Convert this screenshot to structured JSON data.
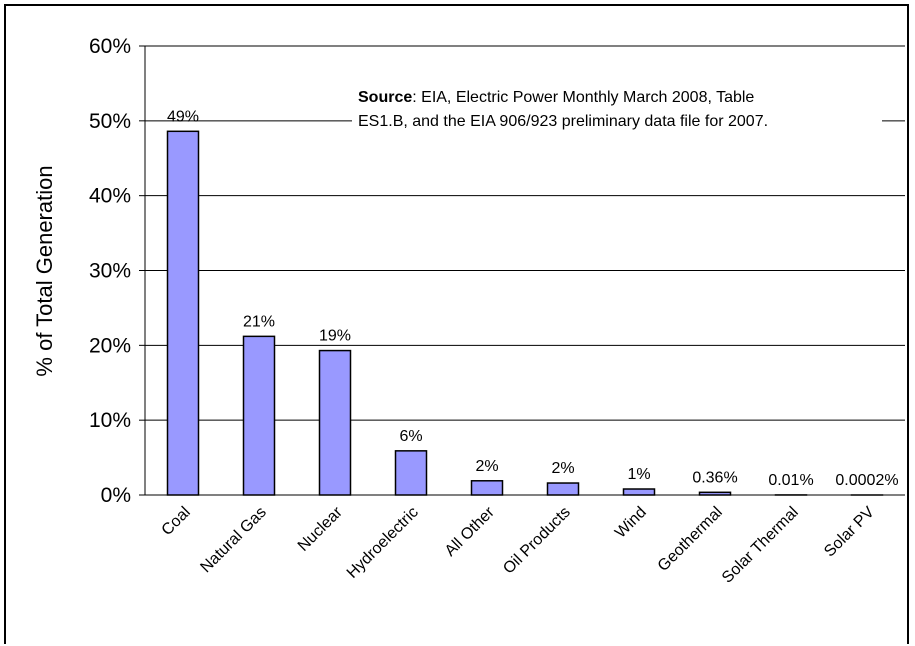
{
  "chart_data": {
    "type": "bar",
    "ylabel": "% of Total Generation",
    "categories": [
      "Coal",
      "Natural Gas",
      "Nuclear",
      "Hydroelectric",
      "All Other",
      "Oil Products",
      "Wind",
      "Geothermal",
      "Solar Thermal",
      "Solar PV"
    ],
    "values": [
      48.6,
      21.2,
      19.3,
      5.9,
      1.9,
      1.6,
      0.8,
      0.36,
      0.01,
      0.0002
    ],
    "data_labels": [
      "49%",
      "21%",
      "19%",
      "6%",
      "2%",
      "2%",
      "1%",
      "0.36%",
      "0.01%",
      "0.0002%"
    ],
    "ylim": [
      0,
      60
    ],
    "yticks": [
      "0%",
      "10%",
      "20%",
      "30%",
      "40%",
      "50%",
      "60%"
    ],
    "grid": true,
    "bar_color": "#9999ff",
    "source": {
      "bold": "Source",
      "line1": ": EIA, Electric Power Monthly March 2008, Table",
      "line2": "ES1.B, and the EIA 906/923 preliminary data file  for 2007."
    }
  }
}
